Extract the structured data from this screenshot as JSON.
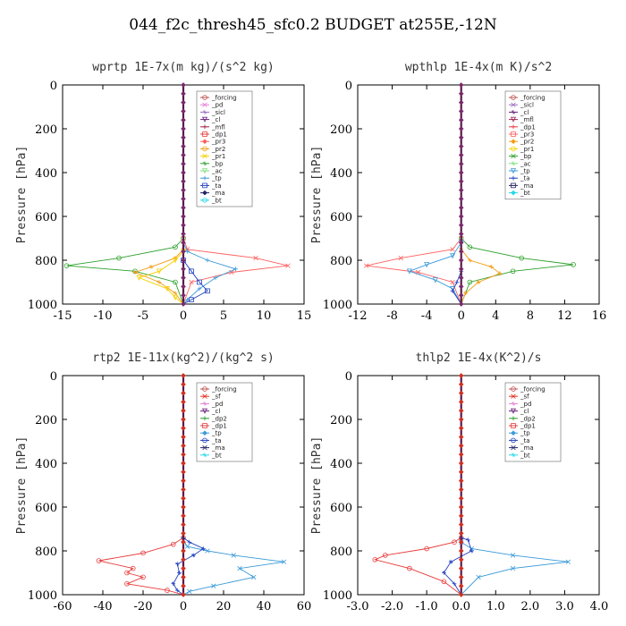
{
  "title": "044_f2c_thresh45_sfc0.2  BUDGET at255E,-12N",
  "colors": {
    "_forcing": "#c0504d",
    "_pd": "#e47fd8",
    "_sicl": "#9b6fc0",
    "_cl": "#6a1d7c",
    "_mfl": "#a3224d",
    "_dp1": "#e83a3a",
    "_pr3": "#ff6060",
    "_pr2": "#f39c12",
    "_pr1": "#f5d000",
    "_bp": "#2ca02c",
    "_ac": "#7ee07e",
    "_tp": "#3a9ad9",
    "_ta": "#2040c0",
    "_ma": "#222266",
    "_bt": "#22d8e8",
    "_sf": "#e03020",
    "_dp2": "#2ca02c"
  },
  "chart_data": [
    {
      "type": "line",
      "title": "wprtp  1E-7x(m kg)/(s^2 kg)",
      "ylabel": "Pressure [hPa]",
      "xlim": [
        -15,
        15
      ],
      "ylim": [
        1000,
        0
      ],
      "xticks": [
        -15,
        -10,
        -5,
        0,
        5,
        10,
        15
      ],
      "yticks": [
        0,
        200,
        400,
        600,
        800,
        1000
      ],
      "xticklabels": [
        "-15",
        "-10",
        "-5",
        "0",
        "5",
        "10",
        "15"
      ],
      "yticklabels": [
        "0",
        "200",
        "400",
        "600",
        "800",
        "1000"
      ],
      "legend": [
        "_forcing",
        "_pd",
        "_sicl",
        "_cl",
        "_mfl",
        "_dp1",
        "_pr3",
        "_pr2",
        "_pr1",
        "_bp",
        "_ac",
        "_tp",
        "_ta",
        "_ma",
        "_bt"
      ],
      "series": [
        {
          "name": "_bp",
          "points": [
            [
              0,
              0
            ],
            [
              0,
              700
            ],
            [
              -1,
              740
            ],
            [
              -8,
              790
            ],
            [
              -14.5,
              825
            ],
            [
              -6,
              850
            ],
            [
              -1,
              900
            ],
            [
              0,
              1000
            ]
          ]
        },
        {
          "name": "_pr3",
          "points": [
            [
              0,
              0
            ],
            [
              0,
              700
            ],
            [
              0.5,
              750
            ],
            [
              9,
              790
            ],
            [
              13,
              825
            ],
            [
              6,
              855
            ],
            [
              1,
              900
            ],
            [
              0,
              1000
            ]
          ]
        },
        {
          "name": "_pr2",
          "points": [
            [
              0,
              0
            ],
            [
              0,
              750
            ],
            [
              -1,
              790
            ],
            [
              -4,
              830
            ],
            [
              -6,
              855
            ],
            [
              -3,
              900
            ],
            [
              -1,
              950
            ],
            [
              0,
              1000
            ]
          ]
        },
        {
          "name": "_pr1",
          "points": [
            [
              0,
              0
            ],
            [
              0,
              760
            ],
            [
              -1,
              800
            ],
            [
              -3,
              850
            ],
            [
              -5.5,
              880
            ],
            [
              -2,
              930
            ],
            [
              -1,
              970
            ],
            [
              0,
              1000
            ]
          ]
        },
        {
          "name": "_tp",
          "points": [
            [
              0,
              0
            ],
            [
              0,
              720
            ],
            [
              0.5,
              760
            ],
            [
              3,
              800
            ],
            [
              6.5,
              840
            ],
            [
              4,
              880
            ],
            [
              2,
              930
            ],
            [
              0.5,
              980
            ],
            [
              0,
              1000
            ]
          ]
        },
        {
          "name": "_ta",
          "points": [
            [
              0,
              0
            ],
            [
              0,
              800
            ],
            [
              1,
              850
            ],
            [
              2,
              900
            ],
            [
              3,
              940
            ],
            [
              1,
              980
            ],
            [
              0,
              1000
            ]
          ]
        }
      ]
    },
    {
      "type": "line",
      "title": "wpthlp  1E-4x(m K)/s^2",
      "ylabel": "Pressure [hPa]",
      "xlim": [
        -12,
        16
      ],
      "ylim": [
        1000,
        0
      ],
      "xticks": [
        -12,
        -8,
        -4,
        0,
        4,
        8,
        12,
        16
      ],
      "yticks": [
        0,
        200,
        400,
        600,
        800,
        1000
      ],
      "xticklabels": [
        "-12",
        "-8",
        "-4",
        "0",
        "4",
        "8",
        "12",
        "16"
      ],
      "yticklabels": [
        "0",
        "200",
        "400",
        "600",
        "800",
        "1000"
      ],
      "legend": [
        "_forcing",
        "_sicl",
        "_cl",
        "_mfl",
        "_dp1",
        "_pr3",
        "_pr2",
        "_pr1",
        "_bp",
        "_ac",
        "_tp",
        "_ta",
        "_ma",
        "_bt"
      ],
      "series": [
        {
          "name": "_bp",
          "points": [
            [
              0,
              0
            ],
            [
              0,
              700
            ],
            [
              1,
              740
            ],
            [
              7,
              790
            ],
            [
              13,
              820
            ],
            [
              6,
              850
            ],
            [
              1,
              900
            ],
            [
              0,
              1000
            ]
          ]
        },
        {
          "name": "_pr3",
          "points": [
            [
              0,
              0
            ],
            [
              0,
              700
            ],
            [
              -1,
              750
            ],
            [
              -7,
              790
            ],
            [
              -11,
              825
            ],
            [
              -5,
              855
            ],
            [
              -1,
              900
            ],
            [
              0,
              1000
            ]
          ]
        },
        {
          "name": "_pr2",
          "points": [
            [
              0,
              0
            ],
            [
              0,
              750
            ],
            [
              1,
              800
            ],
            [
              3.5,
              830
            ],
            [
              4.5,
              860
            ],
            [
              2,
              900
            ],
            [
              0.5,
              950
            ],
            [
              0,
              1000
            ]
          ]
        },
        {
          "name": "_tp",
          "points": [
            [
              0,
              0
            ],
            [
              0,
              720
            ],
            [
              -1,
              780
            ],
            [
              -4,
              820
            ],
            [
              -6,
              850
            ],
            [
              -3,
              890
            ],
            [
              -1,
              930
            ],
            [
              0,
              1000
            ]
          ]
        },
        {
          "name": "_ta",
          "points": [
            [
              0,
              0
            ],
            [
              0,
              850
            ],
            [
              -0.5,
              900
            ],
            [
              -1,
              940
            ],
            [
              0,
              1000
            ]
          ]
        }
      ]
    },
    {
      "type": "line",
      "title": "rtp2  1E-11x(kg^2)/(kg^2 s)",
      "ylabel": "Pressure [hPa]",
      "xlim": [
        -60,
        60
      ],
      "ylim": [
        1000,
        0
      ],
      "xticks": [
        -60,
        -40,
        -20,
        0,
        20,
        40,
        60
      ],
      "yticks": [
        0,
        200,
        400,
        600,
        800,
        1000
      ],
      "xticklabels": [
        "-60",
        "-40",
        "-20",
        "0",
        "20",
        "40",
        "60"
      ],
      "yticklabels": [
        "0",
        "200",
        "400",
        "600",
        "800",
        "1000"
      ],
      "legend": [
        "_forcing",
        "_sf",
        "_pd",
        "_cl",
        "_dp2",
        "_dp1",
        "_tp",
        "_ta",
        "_ma",
        "_bt"
      ],
      "series": [
        {
          "name": "_dp1",
          "points": [
            [
              0,
              0
            ],
            [
              0,
              740
            ],
            [
              -5,
              770
            ],
            [
              -20,
              810
            ],
            [
              -42,
              845
            ],
            [
              -25,
              880
            ],
            [
              -28,
              900
            ],
            [
              -20,
              920
            ],
            [
              -28,
              950
            ],
            [
              -8,
              980
            ],
            [
              0,
              1000
            ]
          ]
        },
        {
          "name": "_tp",
          "points": [
            [
              0,
              0
            ],
            [
              0,
              750
            ],
            [
              2,
              780
            ],
            [
              12,
              800
            ],
            [
              25,
              820
            ],
            [
              50,
              850
            ],
            [
              28,
              880
            ],
            [
              35,
              920
            ],
            [
              15,
              960
            ],
            [
              3,
              985
            ],
            [
              0,
              1000
            ]
          ]
        },
        {
          "name": "_ta",
          "points": [
            [
              0,
              0
            ],
            [
              0,
              740
            ],
            [
              3,
              760
            ],
            [
              10,
              790
            ],
            [
              5,
              820
            ],
            [
              -3,
              860
            ],
            [
              -2,
              900
            ],
            [
              -5,
              950
            ],
            [
              -3,
              980
            ],
            [
              0,
              1000
            ]
          ]
        },
        {
          "name": "_forcing",
          "points": [
            [
              0,
              0
            ],
            [
              0,
              1000
            ]
          ]
        }
      ]
    },
    {
      "type": "line",
      "title": "thlp2  1E-4x(K^2)/s",
      "ylabel": "Pressure [hPa]",
      "xlim": [
        -3.0,
        4.0
      ],
      "ylim": [
        1000,
        0
      ],
      "xticks": [
        -3.0,
        -2.0,
        -1.0,
        0.0,
        1.0,
        2.0,
        3.0,
        4.0
      ],
      "yticks": [
        0,
        200,
        400,
        600,
        800,
        1000
      ],
      "xticklabels": [
        "-3.0",
        "-2.0",
        "-1.0",
        "0.0",
        "1.0",
        "2.0",
        "3.0",
        "4.0"
      ],
      "yticklabels": [
        "0",
        "200",
        "400",
        "600",
        "800",
        "1000"
      ],
      "legend": [
        "_forcing",
        "_sf",
        "_pd",
        "_cl",
        "_dp2",
        "_dp1",
        "_tp",
        "_ta",
        "_ma",
        "_bt"
      ],
      "series": [
        {
          "name": "_dp1",
          "points": [
            [
              0,
              0
            ],
            [
              0,
              740
            ],
            [
              -0.2,
              760
            ],
            [
              -1,
              790
            ],
            [
              -2.2,
              820
            ],
            [
              -2.5,
              840
            ],
            [
              -1.5,
              880
            ],
            [
              -0.5,
              940
            ],
            [
              0,
              1000
            ]
          ]
        },
        {
          "name": "_tp",
          "points": [
            [
              0,
              0
            ],
            [
              0,
              760
            ],
            [
              0.3,
              790
            ],
            [
              1.5,
              820
            ],
            [
              3.1,
              850
            ],
            [
              1.5,
              880
            ],
            [
              0.5,
              920
            ],
            [
              0,
              1000
            ]
          ]
        },
        {
          "name": "_ta",
          "points": [
            [
              0,
              0
            ],
            [
              0,
              740
            ],
            [
              0.2,
              750
            ],
            [
              0.3,
              800
            ],
            [
              -0.3,
              850
            ],
            [
              -0.5,
              900
            ],
            [
              -0.2,
              950
            ],
            [
              0,
              1000
            ]
          ]
        },
        {
          "name": "_forcing",
          "points": [
            [
              0,
              0
            ],
            [
              0,
              1000
            ]
          ]
        }
      ]
    }
  ]
}
